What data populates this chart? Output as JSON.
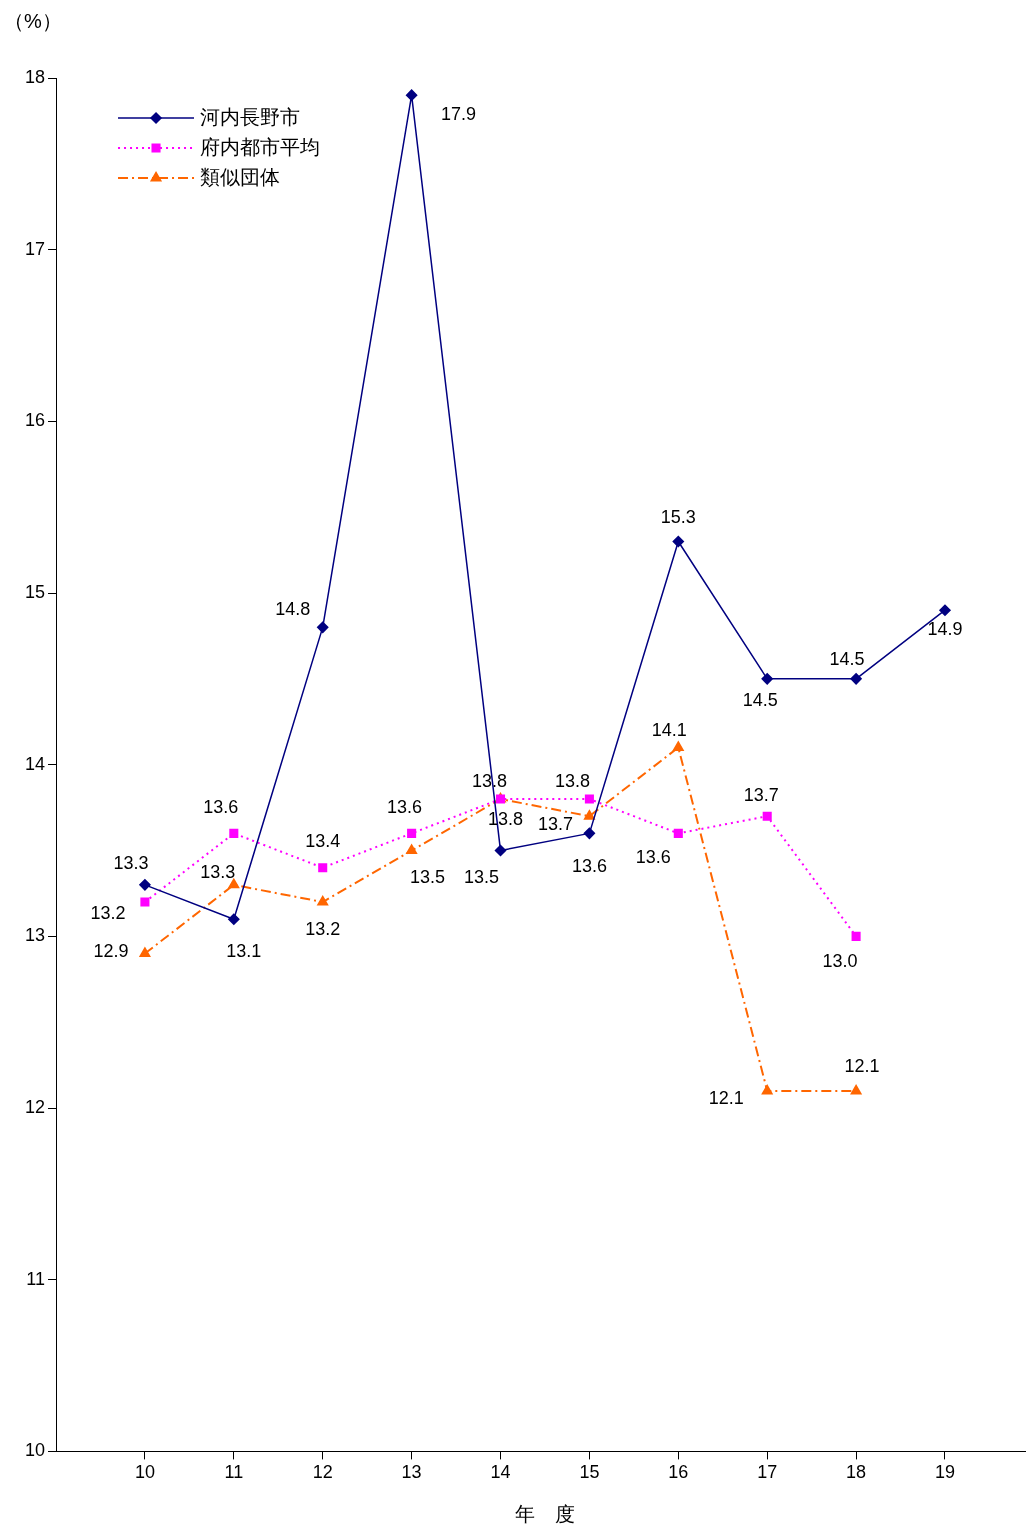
{
  "chart_data": {
    "type": "line",
    "ylabel": "（%）",
    "xlabel": "年　度",
    "categories": [
      "10",
      "11",
      "12",
      "13",
      "14",
      "15",
      "16",
      "17",
      "18",
      "19"
    ],
    "series": [
      {
        "name": "河内長野市",
        "color": "#000080",
        "marker": "diamond",
        "line_style": "solid",
        "values": [
          13.3,
          13.1,
          14.8,
          17.9,
          13.5,
          13.6,
          15.3,
          14.5,
          14.5,
          14.9
        ],
        "value_labels": [
          "13.3",
          "13.1",
          "14.8",
          "17.9",
          "13.5",
          "13.6",
          "15.3",
          "14.5",
          "14.5",
          "14.9"
        ]
      },
      {
        "name": "府内都市平均",
        "color": "#ff00ff",
        "marker": "square",
        "line_style": "dotted",
        "values": [
          13.2,
          13.6,
          13.4,
          13.6,
          13.8,
          13.8,
          13.6,
          13.7,
          13.0,
          null
        ],
        "value_labels": [
          "13.2",
          "13.6",
          "13.4",
          "13.6",
          "13.8",
          "13.8",
          "13.6",
          "13.7",
          "13.0",
          null
        ]
      },
      {
        "name": "類似団体",
        "color": "#ff6600",
        "marker": "triangle",
        "line_style": "dashed",
        "values": [
          12.9,
          13.3,
          13.2,
          13.5,
          13.8,
          13.7,
          14.1,
          12.1,
          12.1,
          null
        ],
        "value_labels": [
          "12.9",
          "13.3",
          "13.2",
          "13.5",
          "13.8",
          "13.7",
          "14.1",
          "12.1",
          "12.1",
          null
        ]
      }
    ],
    "ylim": [
      10,
      18
    ],
    "yticks": [
      10,
      11,
      12,
      13,
      14,
      15,
      16,
      17,
      18
    ],
    "grid": false,
    "legend": "top left"
  }
}
